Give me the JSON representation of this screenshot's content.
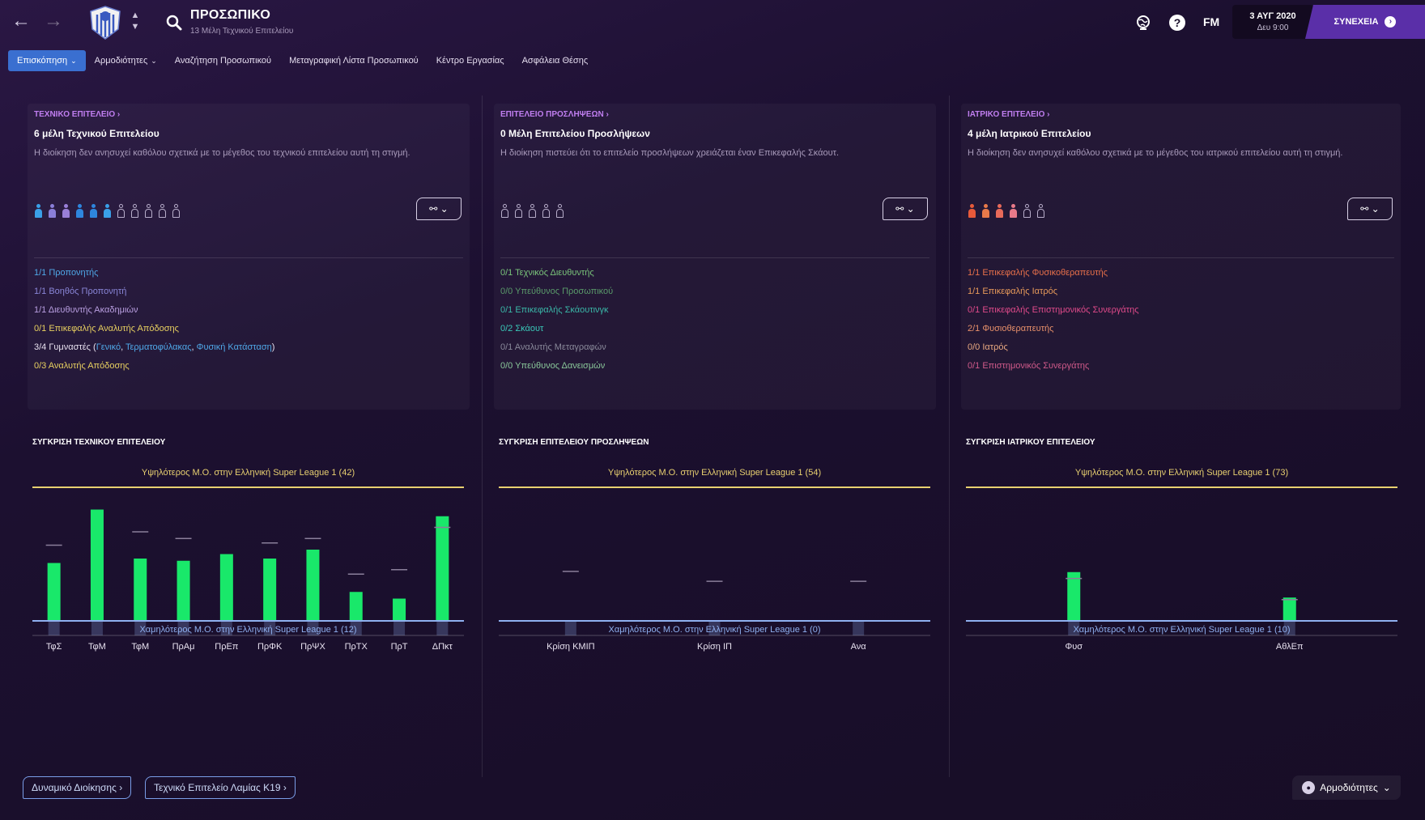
{
  "header": {
    "title": "ΠΡΟΣΩΠΙΚΟ",
    "subtitle": "13 Μέλη Τεχνικού Επιτελείου",
    "fm_label": "FM",
    "date": "3 ΑΥΓ 2020",
    "time": "Δευ 9:00",
    "continue_label": "ΣΥΝΕΧΕΙΑ",
    "icons": [
      "back-arrow-icon",
      "forward-arrow-icon",
      "club-badge",
      "search-icon",
      "world-icon",
      "help-icon"
    ]
  },
  "tabs": [
    {
      "label": "Επισκόπηση",
      "active": true,
      "dropdown": true
    },
    {
      "label": "Αρμοδιότητες",
      "active": false,
      "dropdown": true
    },
    {
      "label": "Αναζήτηση Προσωπικού",
      "active": false,
      "dropdown": false
    },
    {
      "label": "Μεταγραφική Λίστα Προσωπικού",
      "active": false,
      "dropdown": false
    },
    {
      "label": "Κέντρο Εργασίας",
      "active": false,
      "dropdown": false
    },
    {
      "label": "Ασφάλεια Θέσης",
      "active": false,
      "dropdown": false
    }
  ],
  "panels": [
    {
      "heading": "ΤΕΧΝΙΚΟ ΕΠΙΤΕΛΕΙΟ",
      "title": "6 μέλη Τεχνικού Επιτελείου",
      "description": "Η διοίκηση δεν ανησυχεί καθόλου σχετικά με το μέγεθος του τεχνικού επιτελείου αυτή τη στιγμή.",
      "figures": [
        "#3aa0e8",
        "#8a7fd8",
        "#9a80d8",
        "#2e86de",
        "#2e86de",
        "#3aa0e8",
        null,
        null,
        null,
        null,
        null
      ],
      "roles_pre": [
        {
          "text": "1/1 Προπονητής",
          "color": "#4fa8e8"
        },
        {
          "text": "1/1 Βοηθός Προπονητή",
          "color": "#8a86d8"
        },
        {
          "text": "1/1 Διευθυντής Ακαδημιών",
          "color": "#b89ee0"
        },
        {
          "text": "0/1 Επικεφαλής Αναλυτής Απόδοσης",
          "color": "#e8d060"
        }
      ],
      "gym_prefix": "3/4 Γυμναστές (",
      "gym_links": [
        "Γενικό",
        "Τερματοφύλακας",
        "Φυσική Κατάσταση"
      ],
      "gym_sep": ", ",
      "gym_suffix": ")",
      "roles_post": [
        {
          "text": "0/3 Αναλυτής Απόδοσης",
          "color": "#e8d060"
        }
      ]
    },
    {
      "heading": "ΕΠΙΤΕΛΕΙΟ ΠΡΟΣΛΗΨΕΩΝ",
      "title": "0 Μέλη Επιτελείου Προσλήψεων",
      "description": "Η διοίκηση πιστεύει ότι το επιτελείο προσλήψεων χρειάζεται έναν Επικεφαλής Σκάουτ.",
      "figures": [
        null,
        null,
        null,
        null,
        null
      ],
      "roles": [
        {
          "text": "0/1 Τεχνικός Διευθυντής",
          "color": "#7ac47a"
        },
        {
          "text": "0/0 Υπεύθυνος Προσωπικού",
          "color": "#5a9a6a"
        },
        {
          "text": "0/1 Επικεφαλής Σκάουτινγκ",
          "color": "#3ab8a8"
        },
        {
          "text": "0/2 Σκάουτ",
          "color": "#3ac8b8"
        },
        {
          "text": "0/1 Αναλυτής Μεταγραφών",
          "color": "#8a8a9a"
        },
        {
          "text": "0/0 Υπεύθυνος Δανεισμών",
          "color": "#8ac89a"
        }
      ]
    },
    {
      "heading": "ΙΑΤΡΙΚΟ ΕΠΙΤΕΛΕΙΟ",
      "title": "4 μέλη Ιατρικού Επιτελείου",
      "description": "Η διοίκηση δεν ανησυχεί καθόλου σχετικά με το μέγεθος του ιατρικού επιτελείου αυτή τη στιγμή.",
      "figures": [
        "#e85a3a",
        "#e87a4a",
        "#e86a5a",
        "#e87a8a",
        null,
        null
      ],
      "roles": [
        {
          "text": "1/1 Επικεφαλής Φυσικοθεραπευτής",
          "color": "#e8704a"
        },
        {
          "text": "1/1 Επικεφαλής Ιατρός",
          "color": "#e89a5a"
        },
        {
          "text": "0/1 Επικεφαλής Επιστημονικός Συνεργάτης",
          "color": "#e04a8a"
        },
        {
          "text": "2/1 Φυσιοθεραπευτής",
          "color": "#e8906a"
        },
        {
          "text": "0/0 Ιατρός",
          "color": "#e8a880"
        },
        {
          "text": "0/1 Επιστημονικός Συνεργάτης",
          "color": "#d05a8a"
        }
      ]
    }
  ],
  "chart_data": [
    {
      "type": "bar",
      "title": "ΣΥΓΚΡΙΣΗ ΤΕΧΝΙΚΟΥ ΕΠΙΤΕΛΕΙΟΥ",
      "max_label": "Υψηλότερος Μ.Ο. στην Ελληνική Super League 1 (42)",
      "min_label": "Χαμηλότερος Μ.Ο. στην Ελληνική Super League 1 (12)",
      "ylim": [
        12,
        42
      ],
      "categories": [
        "ΤφΣ",
        "ΤφΜ",
        "ΤφΜ",
        "ΠρΑμ",
        "ΠρΕπ",
        "ΠρΦΚ",
        "ΠρΨΧ",
        "ΠρΤΧ",
        "ΠρΤ",
        "ΔΠκτ"
      ],
      "values": [
        25,
        37,
        26,
        25.5,
        27,
        26,
        28,
        18.5,
        17,
        35.5
      ],
      "averages": [
        29,
        null,
        32,
        30.5,
        null,
        29.5,
        30.5,
        22.5,
        23.5,
        33
      ],
      "bar_color": "#19e86a",
      "max_color": "#e8d070",
      "min_color": "#8fb0f0"
    },
    {
      "type": "bar",
      "title": "ΣΥΓΚΡΙΣΗ ΕΠΙΤΕΛΕΙΟΥ ΠΡΟΣΛΗΨΕΩΝ",
      "max_label": "Υψηλότερος Μ.Ο. στην Ελληνική Super League 1 (54)",
      "min_label": "Χαμηλότερος Μ.Ο. στην Ελληνική Super League 1 (0)",
      "ylim": [
        0,
        54
      ],
      "categories": [
        "Κρίση ΚΜΙΠ",
        "Κρίση ΙΠ",
        "Ανα"
      ],
      "values": [
        0,
        0,
        0
      ],
      "averages": [
        20,
        16,
        16
      ],
      "bar_color": "#19e86a",
      "max_color": "#e8d070",
      "min_color": "#8fb0f0"
    },
    {
      "type": "bar",
      "title": "ΣΥΓΚΡΙΣΗ ΙΑΤΡΙΚΟΥ ΕΠΙΤΕΛΕΙΟΥ",
      "max_label": "Υψηλότερος Μ.Ο. στην Ελληνική Super League 1 (73)",
      "min_label": "Χαμηλότερος Μ.Ο. στην Ελληνική Super League 1 (10)",
      "ylim": [
        10,
        73
      ],
      "categories": [
        "Φυσ",
        "ΑθλΕπ"
      ],
      "values": [
        33,
        21
      ],
      "averages": [
        30,
        20
      ],
      "bar_color": "#19e86a",
      "max_color": "#e8d070",
      "min_color": "#8fb0f0"
    }
  ],
  "bottom": {
    "buttons": [
      "Δυναμικό Διοίκησης",
      "Τεχνικό Επιτελείο Λαμίας Κ19"
    ],
    "roles_label": "Αρμοδιότητες"
  }
}
